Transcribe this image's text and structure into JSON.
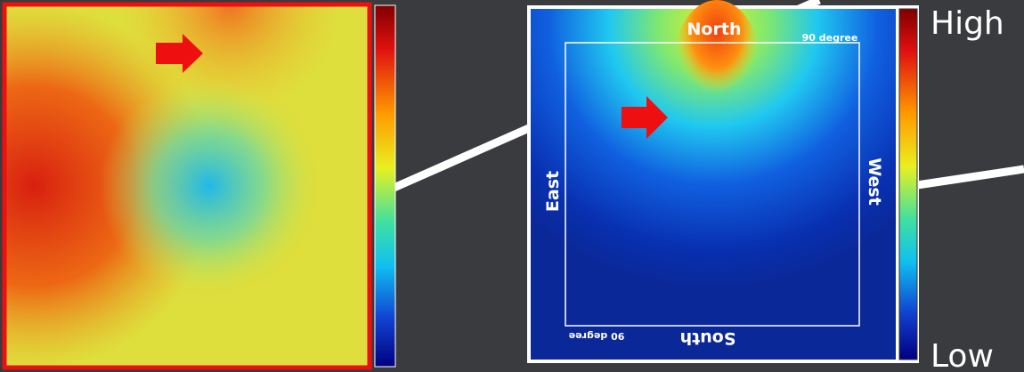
{
  "right_panel": {
    "north": "North",
    "top_degree": "90 degree",
    "east": "East",
    "west": "West",
    "south": "South",
    "bottom_degree": "90 degree"
  },
  "scale": {
    "high": "High",
    "low": "Low"
  }
}
